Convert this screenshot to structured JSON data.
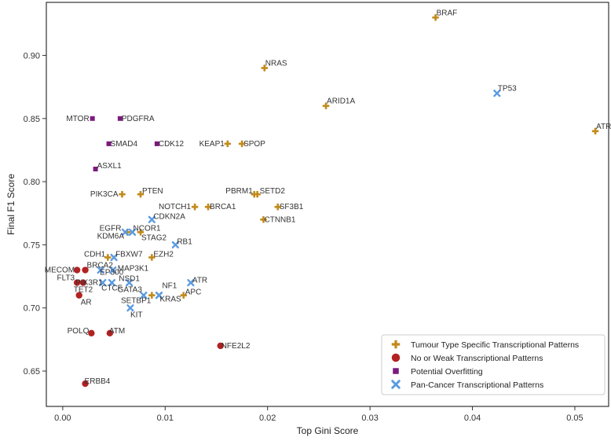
{
  "chart_data": {
    "type": "scatter",
    "xlabel": "Top Gini Score",
    "ylabel": "Final F1 Score",
    "xlim": [
      -0.0016,
      0.0533
    ],
    "ylim": [
      0.622,
      0.942
    ],
    "xticks": [
      {
        "v": 0.0,
        "label": "0.00"
      },
      {
        "v": 0.01,
        "label": "0.01"
      },
      {
        "v": 0.02,
        "label": "0.02"
      },
      {
        "v": 0.03,
        "label": "0.03"
      },
      {
        "v": 0.04,
        "label": "0.04"
      },
      {
        "v": 0.05,
        "label": "0.05"
      }
    ],
    "yticks": [
      {
        "v": 0.65,
        "label": "0.65"
      },
      {
        "v": 0.7,
        "label": "0.70"
      },
      {
        "v": 0.75,
        "label": "0.75"
      },
      {
        "v": 0.8,
        "label": "0.80"
      },
      {
        "v": 0.85,
        "label": "0.85"
      },
      {
        "v": 0.9,
        "label": "0.90"
      }
    ],
    "grid": false,
    "legend_position": "bottom-right",
    "series": [
      {
        "name": "Tumour Type Specific Transcriptional Patterns",
        "marker": "plus",
        "color": "#C28A1A",
        "points": [
          {
            "label": "BRAF",
            "x": 0.0364,
            "y": 0.93
          },
          {
            "label": "NRAS",
            "x": 0.0197,
            "y": 0.89
          },
          {
            "label": "ARID1A",
            "x": 0.0257,
            "y": 0.86
          },
          {
            "label": "ATRX",
            "x": 0.052,
            "y": 0.84
          },
          {
            "label": "KEAP1",
            "x": 0.0161,
            "y": 0.83
          },
          {
            "label": "SPOP",
            "x": 0.0175,
            "y": 0.83
          },
          {
            "label": "PIK3CA",
            "x": 0.0058,
            "y": 0.79
          },
          {
            "label": "PTEN",
            "x": 0.0076,
            "y": 0.79
          },
          {
            "label": "PBRM1",
            "x": 0.0187,
            "y": 0.79
          },
          {
            "label": "SETD2",
            "x": 0.019,
            "y": 0.79
          },
          {
            "label": "NOTCH1",
            "x": 0.0129,
            "y": 0.78
          },
          {
            "label": "BRCA1",
            "x": 0.0142,
            "y": 0.78
          },
          {
            "label": "SF3B1",
            "x": 0.021,
            "y": 0.78
          },
          {
            "label": "CTNNB1",
            "x": 0.0196,
            "y": 0.77
          },
          {
            "label": "KDM6A",
            "x": 0.0063,
            "y": 0.76
          },
          {
            "label": "STAG2",
            "x": 0.0076,
            "y": 0.76
          },
          {
            "label": "CDH1",
            "x": 0.0044,
            "y": 0.74
          },
          {
            "label": "EZH2",
            "x": 0.0087,
            "y": 0.74
          },
          {
            "label": "SETBP1",
            "x": 0.0087,
            "y": 0.71
          },
          {
            "label": "APC",
            "x": 0.0118,
            "y": 0.71
          }
        ]
      },
      {
        "name": "No or Weak Transcriptional Patterns",
        "marker": "circle",
        "color": "#B22222",
        "points": [
          {
            "label": "MECOM",
            "x": 0.0014,
            "y": 0.73
          },
          {
            "label": "BRCA2",
            "x": 0.0022,
            "y": 0.73
          },
          {
            "label": "FLT3",
            "x": 0.0014,
            "y": 0.72
          },
          {
            "label": "TET2",
            "x": 0.002,
            "y": 0.72
          },
          {
            "label": "AR",
            "x": 0.0016,
            "y": 0.71
          },
          {
            "label": "POLQ",
            "x": 0.0028,
            "y": 0.68
          },
          {
            "label": "ATM",
            "x": 0.0046,
            "y": 0.68
          },
          {
            "label": "NFE2L2",
            "x": 0.0154,
            "y": 0.67
          },
          {
            "label": "ERBB4",
            "x": 0.0022,
            "y": 0.64
          }
        ]
      },
      {
        "name": "Potential Overfitting",
        "marker": "square",
        "color": "#7B1A7E",
        "points": [
          {
            "label": "MTOR",
            "x": 0.0029,
            "y": 0.85
          },
          {
            "label": "PDGFRA",
            "x": 0.0056,
            "y": 0.85
          },
          {
            "label": "SMAD4",
            "x": 0.0045,
            "y": 0.83
          },
          {
            "label": "CDK12",
            "x": 0.0092,
            "y": 0.83
          },
          {
            "label": "ASXL1",
            "x": 0.0032,
            "y": 0.81
          }
        ]
      },
      {
        "name": "Pan-Cancer Transcriptional Patterns",
        "marker": "x",
        "color": "#5B9BE0",
        "points": [
          {
            "label": "TP53",
            "x": 0.0424,
            "y": 0.87
          },
          {
            "label": "CDKN2A",
            "x": 0.0087,
            "y": 0.77
          },
          {
            "label": "EGFR",
            "x": 0.0061,
            "y": 0.76
          },
          {
            "label": "NCOR1",
            "x": 0.0068,
            "y": 0.76
          },
          {
            "label": "RB1",
            "x": 0.011,
            "y": 0.75
          },
          {
            "label": "FBXW7",
            "x": 0.005,
            "y": 0.74
          },
          {
            "label": "EP300",
            "x": 0.0037,
            "y": 0.73
          },
          {
            "label": "MAP3K1",
            "x": 0.0049,
            "y": 0.73
          },
          {
            "label": "PIK3R1",
            "x": 0.0039,
            "y": 0.72
          },
          {
            "label": "CTCF",
            "x": 0.0048,
            "y": 0.72
          },
          {
            "label": "NSD1",
            "x": 0.0065,
            "y": 0.72
          },
          {
            "label": "ATR",
            "x": 0.0125,
            "y": 0.72
          },
          {
            "label": "GATA3",
            "x": 0.0079,
            "y": 0.71
          },
          {
            "label": "NF1",
            "x": 0.0094,
            "y": 0.71
          },
          {
            "label": "KRAS",
            "x": 0.0094,
            "y": 0.71
          },
          {
            "label": "KIT",
            "x": 0.0066,
            "y": 0.7
          }
        ]
      }
    ]
  }
}
